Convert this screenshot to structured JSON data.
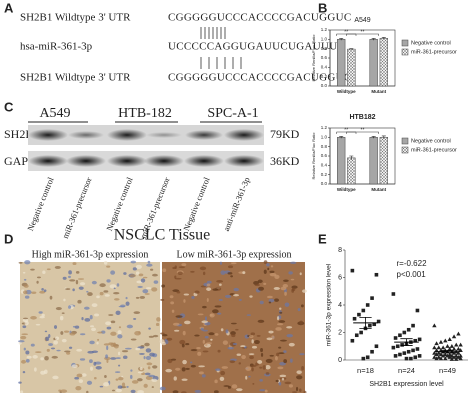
{
  "panel_labels": [
    "A",
    "B",
    "C",
    "D",
    "E"
  ],
  "sequences": [
    {
      "label": "SH2B1 Wildtype 3' UTR",
      "sequence": "CGGGGGUCCCACCCCGACUGGUC"
    },
    {
      "label": "hsa-miR-361-3p",
      "sequence": "UCCCCCAGGUGAUUCUGAUUU"
    },
    {
      "label": "SH2B1 Wildtype 3' UTR",
      "sequence": "CGGGGGUCCCACCCCGACUGGUC"
    }
  ],
  "western_blot": {
    "cell_lines": [
      "A549",
      "HTB-182",
      "SPC-A-1"
    ],
    "proteins": [
      "SH2B1",
      "GAPDH"
    ],
    "sizes": [
      "79KD",
      "36KD"
    ],
    "lanes": [
      "Negative control",
      "miR-361-precursor",
      "Negative control",
      "miR-361-precursor",
      "Negative control",
      "anti-miR-361-3p"
    ]
  },
  "ihc": {
    "title": "NSCLC Tissue",
    "images": [
      "High miR-361-3p expression",
      "Low miR-361-3p expression"
    ]
  },
  "chart_data": [
    {
      "type": "bar",
      "title": "A549",
      "y_label": "Relative Renilla/Fluc Ratio",
      "categories": [
        "Wildtype",
        "Mutant"
      ],
      "series": [
        {
          "name": "Negative control",
          "color": "#a6a6a6",
          "values": [
            1.0,
            1.0
          ],
          "errors": [
            0.02,
            0.02
          ]
        },
        {
          "name": "miR-361-precursor",
          "color": "#e6e6e6",
          "pattern": "crosshatch",
          "values": [
            0.79,
            1.02
          ],
          "errors": [
            0.01,
            0.02
          ]
        }
      ],
      "ylim": [
        0,
        1.2
      ],
      "yticks": [
        {
          "value": 0,
          "label": "0.0"
        },
        0.2,
        0.4,
        0.6,
        0.8,
        {
          "value": 1,
          "label": "1.0"
        },
        1.2
      ],
      "annotations": [
        "**",
        "**"
      ],
      "legend": "right"
    },
    {
      "type": "bar",
      "title": "HTB182",
      "y_label": "Relative Renilla/Fluc Ratio",
      "categories": [
        "Wildtype",
        "Mutant"
      ],
      "series": [
        {
          "name": "Negative control",
          "color": "#a6a6a6",
          "values": [
            1.0,
            1.0
          ],
          "errors": [
            0.02,
            0.02
          ]
        },
        {
          "name": "miR-361-precursor",
          "color": "#e6e6e6",
          "pattern": "crosshatch",
          "values": [
            0.56,
            1.0
          ],
          "errors": [
            0.04,
            0.03
          ]
        }
      ],
      "ylim": [
        0,
        1.2
      ],
      "yticks": [
        {
          "value": 0,
          "label": "0.0"
        },
        0.2,
        0.4,
        0.6,
        0.8,
        {
          "value": 1,
          "label": "1.0"
        },
        1.2
      ],
      "annotations": [
        "**",
        "**"
      ],
      "legend": "right"
    },
    {
      "type": "scatter",
      "y_label": "miR-361-3p expression level",
      "x_label": "SH2B1 expression level",
      "categories": [
        "n=18",
        "n=24",
        "n=49"
      ],
      "annotations": [
        "r=-0.622",
        "p<0.001"
      ],
      "color": "#222222",
      "series": [
        {
          "marker": "square",
          "mean": 2.7,
          "sem": 0.4,
          "values": [
            6.5,
            6.2,
            4.5,
            4.0,
            3.6,
            3.3,
            3.0,
            2.8,
            2.6,
            2.5,
            2.3,
            2.0,
            1.8,
            1.4,
            1.0,
            0.6,
            0.2,
            0.1
          ]
        },
        {
          "marker": "square",
          "mean": 1.3,
          "sem": 0.25,
          "values": [
            4.8,
            3.6,
            2.5,
            2.2,
            2.0,
            1.8,
            1.6,
            1.5,
            1.4,
            1.3,
            1.2,
            1.1,
            1.0,
            0.9,
            0.8,
            0.7,
            0.6,
            0.5,
            0.4,
            0.3,
            0.3,
            0.2,
            0.1,
            0.1
          ]
        },
        {
          "marker": "triangle",
          "mean": 0.6,
          "sem": 0.08,
          "values": [
            2.5,
            1.9,
            1.7,
            1.5,
            1.4,
            1.3,
            1.2,
            1.1,
            1.1,
            1.0,
            1.0,
            0.9,
            0.9,
            0.9,
            0.8,
            0.8,
            0.8,
            0.7,
            0.7,
            0.7,
            0.7,
            0.6,
            0.6,
            0.6,
            0.6,
            0.5,
            0.5,
            0.5,
            0.5,
            0.4,
            0.4,
            0.4,
            0.4,
            0.3,
            0.3,
            0.3,
            0.3,
            0.3,
            0.2,
            0.2,
            0.2,
            0.2,
            0.2,
            0.1,
            0.1,
            0.1,
            0.1,
            0.05,
            0.05
          ]
        }
      ],
      "ylim": [
        0,
        8
      ],
      "yticks": [
        0,
        2,
        4,
        6,
        8
      ]
    }
  ]
}
